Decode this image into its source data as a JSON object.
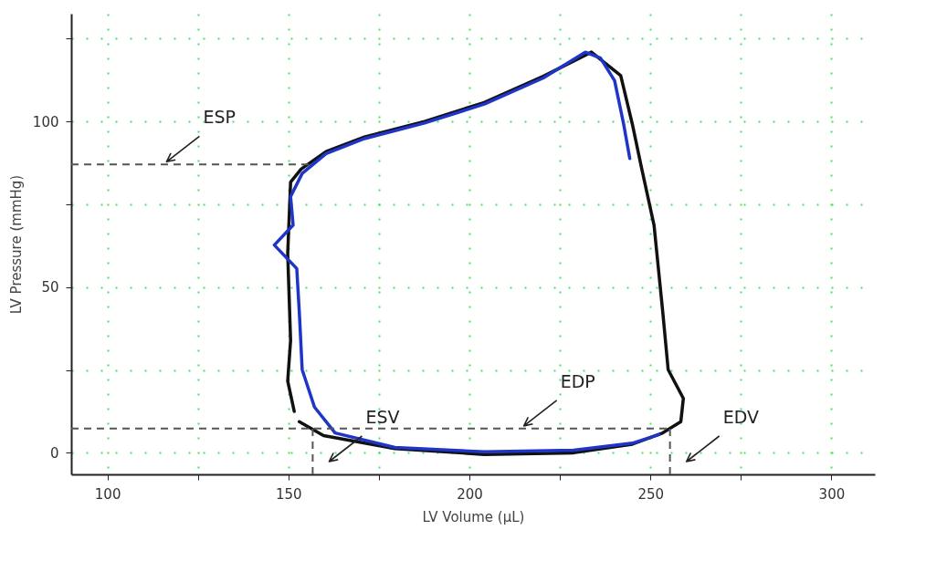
{
  "chart_data": {
    "type": "line",
    "xlabel": "LV Volume (µL)",
    "ylabel": "LV Pressure (mmHg)",
    "xlim": [
      90,
      312
    ],
    "ylim": [
      -6.5,
      132.5
    ],
    "xticks": [
      100,
      {
        "value": 125,
        "label": null
      },
      150,
      {
        "value": 175,
        "label": null
      },
      200,
      {
        "value": 225,
        "label": null
      },
      250,
      {
        "value": 275,
        "label": null
      },
      300
    ],
    "yticks": [
      0,
      {
        "value": 25,
        "label": null
      },
      50,
      {
        "value": 75,
        "label": null
      },
      100,
      {
        "value": 125,
        "label": null
      }
    ],
    "grid": true,
    "line_style": "solid",
    "series": [
      {
        "color": "#111111",
        "x": [
          153.0,
          159.7,
          179.4,
          204.1,
          228.8,
          245.0,
          253.4,
          258.4,
          259.1,
          254.9,
          253.4,
          251.0,
          247.5,
          245.0,
          241.8,
          233.7,
          220.4,
          204.1,
          187.6,
          171.0,
          160.4,
          153.5,
          150.6,
          149.8,
          150.6,
          149.8,
          151.6
        ],
        "values": [
          9.4,
          5.2,
          1.3,
          -0.5,
          0.0,
          2.6,
          6.0,
          9.4,
          16.4,
          25.1,
          42.6,
          68.7,
          86.2,
          99.2,
          113.8,
          120.9,
          113.6,
          105.7,
          100.0,
          95.3,
          90.9,
          85.6,
          81.7,
          60.1,
          33.9,
          21.7,
          12.5
        ]
      },
      {
        "color": "#1f35c8",
        "x": [
          244.3,
          242.6,
          240.1,
          236.2,
          232.0,
          220.4,
          204.1,
          187.6,
          171.0,
          160.4,
          153.8,
          150.6,
          151.3,
          146.1,
          152.3,
          153.0,
          153.8,
          157.2,
          162.9,
          179.4,
          204.1,
          228.8,
          245.0,
          252.4
        ],
        "values": [
          88.8,
          99.2,
          112.3,
          119.1,
          120.9,
          113.1,
          105.2,
          99.5,
          94.8,
          90.3,
          84.3,
          77.3,
          68.7,
          62.7,
          55.6,
          42.6,
          25.1,
          13.8,
          6.0,
          1.6,
          0.3,
          0.8,
          2.9,
          5.5
        ]
      }
    ],
    "ref_lines": [
      {
        "axis": "y",
        "value": 87,
        "color": "#555555",
        "line_style": "dashed"
      },
      {
        "axis": "y",
        "value": 7.3,
        "color": "#555555",
        "line_style": "dashed"
      },
      {
        "axis": "x",
        "value": 156.7,
        "color": "#555555",
        "line_style": "dashed"
      },
      {
        "axis": "x",
        "value": 255.4,
        "color": "#555555",
        "line_style": "dashed"
      }
    ],
    "annotations": [
      "ESP",
      "EDP",
      "ESV",
      "EDV"
    ]
  }
}
